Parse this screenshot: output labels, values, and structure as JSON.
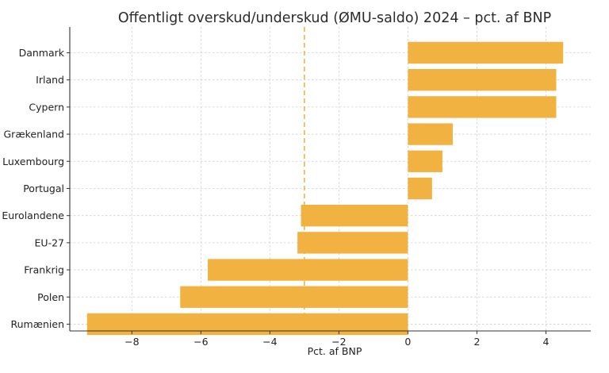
{
  "chart_data": {
    "type": "bar",
    "orientation": "horizontal",
    "title": "Offentligt overskud/underskud (ØMU-saldo) 2024 – pct. af BNP",
    "xlabel": "Pct. af BNP",
    "ylabel": "",
    "categories": [
      "Danmark",
      "Irland",
      "Cypern",
      "Grækenland",
      "Luxembourg",
      "Portugal",
      "Eurolandene",
      "EU-27",
      "Frankrig",
      "Polen",
      "Rumænien"
    ],
    "values": [
      4.5,
      4.3,
      4.3,
      1.3,
      1.0,
      0.7,
      -3.1,
      -3.2,
      -5.8,
      -6.6,
      -9.3
    ],
    "xlim": [
      -9.8,
      5.3
    ],
    "xticks": [
      -8,
      -6,
      -4,
      -2,
      0,
      2,
      4
    ],
    "xtick_labels": [
      "−8",
      "−6",
      "−4",
      "−2",
      "0",
      "2",
      "4"
    ],
    "reference_line": {
      "x": -3,
      "style": "dashed"
    },
    "grid": true,
    "bar_color": "#f2b241"
  }
}
